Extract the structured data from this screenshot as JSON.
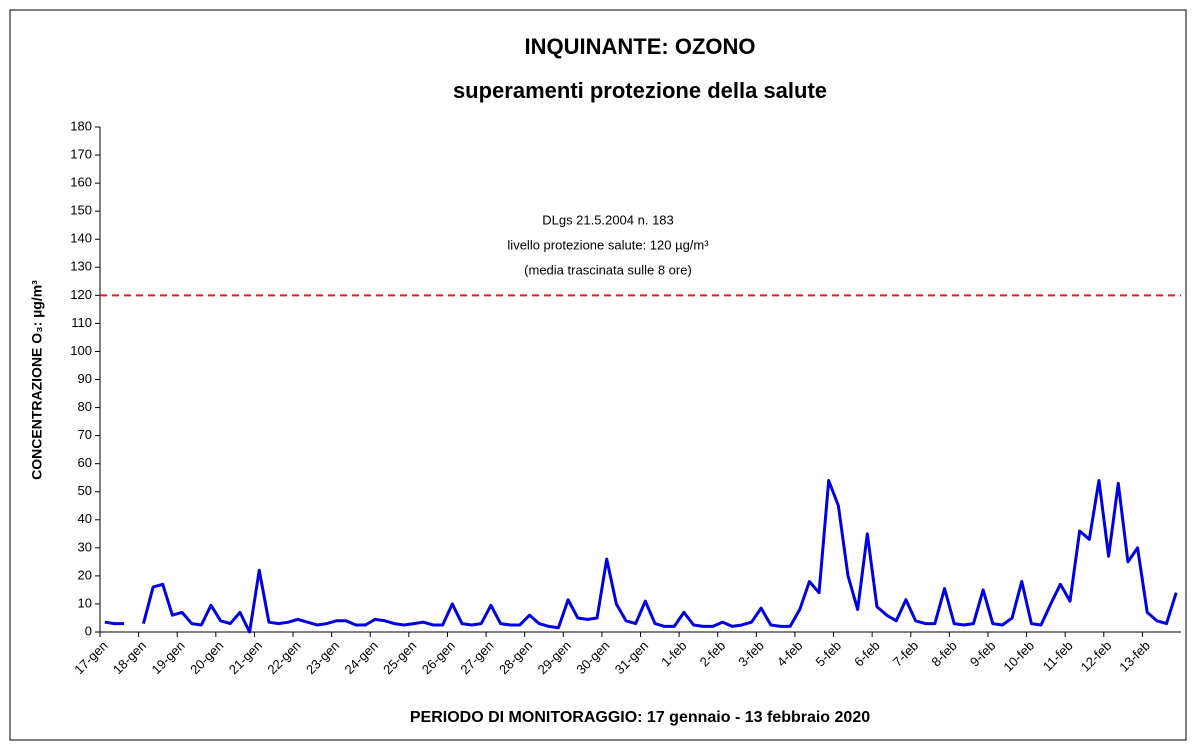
{
  "chart_data": {
    "type": "line",
    "title": "INQUINANTE: OZONO",
    "subtitle": "superamenti protezione della salute",
    "x_label": "PERIODO DI MONITORAGGIO: 17 gennaio - 13 febbraio 2020",
    "y_label": "CONCENTRAZIONE O₃: µg/m³",
    "annotation": [
      "DLgs 21.5.2004 n. 183",
      "livello protezione salute: 120 µg/m³",
      "(media trascinata sulle 8 ore)"
    ],
    "reference_line": {
      "value": 120,
      "color": "#e41a1c"
    },
    "categories": [
      "17-gen",
      null,
      null,
      null,
      "18-gen",
      null,
      null,
      null,
      "19-gen",
      null,
      null,
      null,
      "20-gen",
      null,
      null,
      null,
      "21-gen",
      null,
      null,
      null,
      "22-gen",
      null,
      null,
      null,
      "23-gen",
      null,
      null,
      null,
      "24-gen",
      null,
      null,
      null,
      "25-gen",
      null,
      null,
      null,
      "26-gen",
      null,
      null,
      null,
      "27-gen",
      null,
      null,
      null,
      "28-gen",
      null,
      null,
      null,
      "29-gen",
      null,
      null,
      null,
      "30-gen",
      null,
      null,
      null,
      "31-gen",
      null,
      null,
      null,
      "1-feb",
      null,
      null,
      null,
      "2-feb",
      null,
      null,
      null,
      "3-feb",
      null,
      null,
      null,
      "4-feb",
      null,
      null,
      null,
      "5-feb",
      null,
      null,
      null,
      "6-feb",
      null,
      null,
      null,
      "7-feb",
      null,
      null,
      null,
      "8-feb",
      null,
      null,
      null,
      "9-feb",
      null,
      null,
      null,
      "10-feb",
      null,
      null,
      null,
      "11-feb",
      null,
      null,
      null,
      "12-feb",
      null,
      null,
      null,
      "13-feb",
      null,
      null,
      null
    ],
    "series": [
      {
        "name": "O3",
        "color": "#0000e6",
        "values": [
          3.5,
          3,
          3,
          null,
          3,
          16,
          17,
          6,
          7,
          3,
          2.5,
          9.5,
          4,
          3,
          7,
          0,
          22,
          3.5,
          3,
          3.5,
          4.5,
          3.5,
          2.5,
          3,
          4,
          4,
          2.5,
          2.5,
          4.5,
          4,
          3,
          2.5,
          3,
          3.5,
          2.5,
          2.5,
          10,
          3,
          2.5,
          3,
          9.5,
          3,
          2.5,
          2.5,
          6,
          3,
          2,
          1.5,
          11.5,
          5,
          4.5,
          5,
          26,
          10,
          4,
          3,
          11,
          3,
          2,
          2,
          7,
          2.5,
          2,
          2,
          3.5,
          2,
          2.5,
          3.5,
          8.5,
          2.5,
          2,
          2,
          8,
          18,
          14,
          54,
          45,
          20,
          8,
          35,
          9,
          6,
          4,
          11.5,
          4,
          3,
          3,
          15.5,
          3,
          2.5,
          3,
          15,
          3,
          2.5,
          5,
          18,
          3,
          2.5,
          10,
          17,
          11,
          36,
          33,
          54,
          27,
          53,
          25,
          30,
          7,
          4,
          3,
          14
        ]
      }
    ],
    "ylim": [
      0,
      180
    ],
    "yticks": [
      0,
      10,
      20,
      30,
      40,
      50,
      60,
      70,
      80,
      90,
      100,
      110,
      120,
      130,
      140,
      150,
      160,
      170,
      180
    ]
  }
}
